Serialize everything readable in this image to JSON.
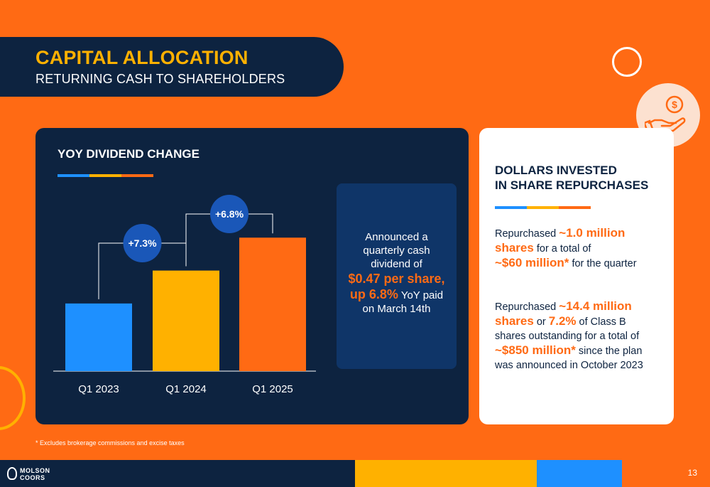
{
  "header": {
    "title": "CAPITAL ALLOCATION",
    "subtitle": "RETURNING CASH TO SHAREHOLDERS"
  },
  "icons": {
    "hand_coin": "hand-holding-dollar-icon",
    "ring_white": "decorative-ring",
    "ring_yellow": "decorative-ring"
  },
  "dividend_panel": {
    "heading": "YOY DIVIDEND CHANGE",
    "announcement": {
      "line1": "Announced a",
      "line2": "quarterly cash",
      "line3": "dividend of",
      "highlight1": "$0.47 per share,",
      "highlight2": "up 6.8%",
      "line4": " YoY paid",
      "line5": "on  March 14th"
    }
  },
  "chart_data": {
    "type": "bar",
    "categories": [
      "Q1 2023",
      "Q1 2024",
      "Q1 2025"
    ],
    "values": [
      1.0,
      1.073,
      1.146
    ],
    "ylim": [
      0.85,
      1.2
    ],
    "colors": [
      "#1E90FF",
      "#FFB100",
      "#FF6A14"
    ],
    "annotations": [
      {
        "label": "+7.3%",
        "from": "Q1 2023",
        "to": "Q1 2024"
      },
      {
        "label": "+6.8%",
        "from": "Q1 2024",
        "to": "Q1 2025"
      }
    ],
    "title": "",
    "xlabel": "",
    "ylabel": ""
  },
  "repurchase_panel": {
    "heading_line1": "DOLLARS INVESTED",
    "heading_line2": "IN SHARE REPURCHASES",
    "block1": {
      "t1": "Repurchased ",
      "h1": "~1.0 million",
      "h2": "shares",
      "t2": " for a total of",
      "h3": "~$60 million*",
      "t3": " for the quarter"
    },
    "block2": {
      "t1": "Repurchased ",
      "h1": "~14.4 million",
      "h2": "shares",
      "t2": " or ",
      "h3": "7.2%",
      "t3": " of Class B",
      "t4": "shares outstanding for a total of",
      "h4": "~$850 million*",
      "t5": " since the plan",
      "t6": "was announced in October 2023"
    }
  },
  "footnote": "* Excludes brokerage commissions and excise taxes",
  "footer": {
    "logo_line1": "MOLSON",
    "logo_line2": "COORS",
    "page_number": "13"
  },
  "colors": {
    "orange": "#FF6A14",
    "navy": "#0D2340",
    "yellow": "#FFB100",
    "blue": "#1E90FF",
    "badge_blue": "#1A57B8",
    "box_blue": "#0F3568"
  }
}
